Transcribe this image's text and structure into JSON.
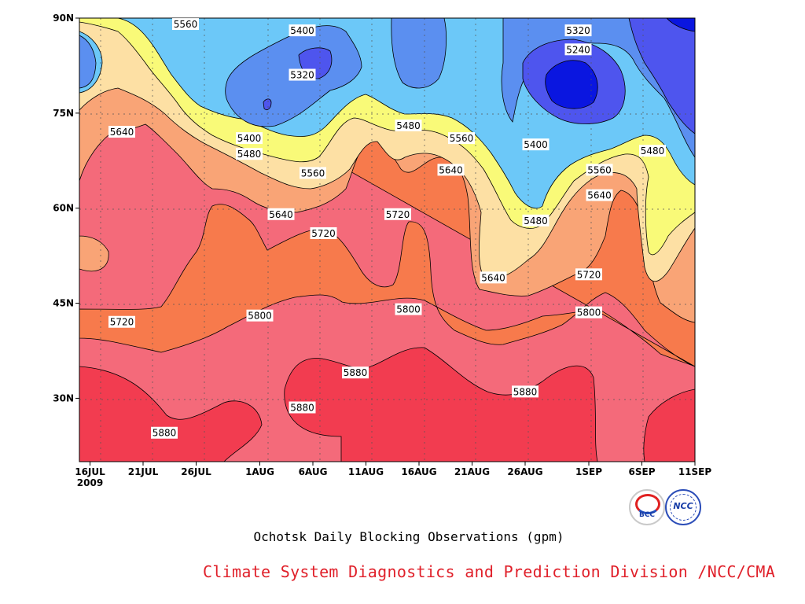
{
  "chart_data": {
    "type": "filled-contour",
    "title": "Ochotsk Daily Blocking Observations (gpm)",
    "x_ticks": [
      "16JUL",
      "21JUL",
      "26JUL",
      "1AUG",
      "6AUG",
      "11AUG",
      "16AUG",
      "21AUG",
      "26AUG",
      "1SEP",
      "6SEP",
      "11SEP"
    ],
    "x_year": "2009",
    "y_ticks": [
      "30N",
      "45N",
      "60N",
      "75N",
      "90N"
    ],
    "x_range": [
      "2009-07-15",
      "2009-09-11"
    ],
    "y_range": [
      20,
      90
    ],
    "grid": "dotted",
    "levels": [
      5240,
      5320,
      5400,
      5480,
      5560,
      5640,
      5720,
      5800,
      5880
    ],
    "colors": [
      "#ffffff",
      "#0a16e0",
      "#4e55ee",
      "#5b8ff0",
      "#6cc8f8",
      "#f9fa78",
      "#fde0a4",
      "#f9a476",
      "#f77a4c",
      "#f46a7a",
      "#f23c50"
    ],
    "contour_labels": [
      {
        "text": "5560",
        "x": "2009-07-25",
        "y": 89
      },
      {
        "text": "5400",
        "x": "2009-08-05",
        "y": 88
      },
      {
        "text": "5320",
        "x": "2009-08-05",
        "y": 81
      },
      {
        "text": "5320",
        "x": "2009-08-31",
        "y": 88
      },
      {
        "text": "5240",
        "x": "2009-08-31",
        "y": 85
      },
      {
        "text": "5640",
        "x": "2009-07-19",
        "y": 72
      },
      {
        "text": "5400",
        "x": "2009-07-31",
        "y": 71
      },
      {
        "text": "5480",
        "x": "2009-07-31",
        "y": 68.5
      },
      {
        "text": "5560",
        "x": "2009-08-06",
        "y": 65.5
      },
      {
        "text": "5480",
        "x": "2009-08-15",
        "y": 73
      },
      {
        "text": "5560",
        "x": "2009-08-20",
        "y": 71
      },
      {
        "text": "5640",
        "x": "2009-08-19",
        "y": 66
      },
      {
        "text": "5400",
        "x": "2009-08-27",
        "y": 70
      },
      {
        "text": "5480",
        "x": "2009-09-07",
        "y": 69
      },
      {
        "text": "5560",
        "x": "2009-09-02",
        "y": 66
      },
      {
        "text": "5640",
        "x": "2009-09-02",
        "y": 62
      },
      {
        "text": "5640",
        "x": "2009-08-03",
        "y": 59
      },
      {
        "text": "5720",
        "x": "2009-08-07",
        "y": 56
      },
      {
        "text": "5720",
        "x": "2009-08-14",
        "y": 59
      },
      {
        "text": "5480",
        "x": "2009-08-27",
        "y": 58
      },
      {
        "text": "5640",
        "x": "2009-08-23",
        "y": 49
      },
      {
        "text": "5720",
        "x": "2009-09-01",
        "y": 49.5
      },
      {
        "text": "5720",
        "x": "2009-07-19",
        "y": 42
      },
      {
        "text": "5800",
        "x": "2009-08-01",
        "y": 43
      },
      {
        "text": "5800",
        "x": "2009-08-15",
        "y": 44
      },
      {
        "text": "5800",
        "x": "2009-09-01",
        "y": 43.5
      },
      {
        "text": "5880",
        "x": "2009-08-10",
        "y": 34
      },
      {
        "text": "5880",
        "x": "2009-08-05",
        "y": 28.5
      },
      {
        "text": "5880",
        "x": "2009-08-26",
        "y": 31
      },
      {
        "text": "5880",
        "x": "2009-07-23",
        "y": 24.5
      }
    ]
  },
  "logos": {
    "bcc": "BCC",
    "ncc": "NCC"
  },
  "caption": "Ochotsk Daily Blocking Observations (gpm)",
  "credit": "Climate System Diagnostics and Prediction Division /NCC/CMA"
}
